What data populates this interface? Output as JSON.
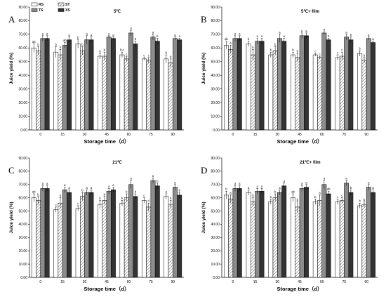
{
  "legend": [
    "RS",
    "ST",
    "TS",
    "XS"
  ],
  "colors": {
    "RS": "#ffffff",
    "ST": "hatch",
    "TS": "#8c8c8c",
    "XS": "#333333",
    "axis": "#000000"
  },
  "chart_data": [
    {
      "type": "bar",
      "letter": "A",
      "title": "5℃",
      "xlabel": "Storage time（d）",
      "ylabel": "Juice yield (%)",
      "ylim": [
        0,
        90
      ],
      "yticks": [
        "0.00",
        "10.00",
        "20.00",
        "30.00",
        "40.00",
        "50.00",
        "60.00",
        "70.00",
        "80.00",
        "90.00"
      ],
      "categories": [
        "0",
        "15",
        "30",
        "45",
        "60",
        "75",
        "90"
      ],
      "series": [
        {
          "name": "RS",
          "values": [
            60,
            57,
            63,
            54,
            55,
            52,
            52
          ],
          "err": [
            3,
            4,
            3,
            2,
            2,
            1,
            3
          ]
        },
        {
          "name": "ST",
          "values": [
            58,
            55,
            58,
            54,
            52,
            51,
            49
          ],
          "err": [
            3,
            4,
            3,
            3,
            2,
            2,
            3
          ]
        },
        {
          "name": "TS",
          "values": [
            67,
            62,
            66,
            68,
            71,
            68,
            67
          ],
          "err": [
            2,
            2,
            3,
            1,
            2,
            2,
            1
          ]
        },
        {
          "name": "XS",
          "values": [
            67,
            66,
            66,
            67,
            63,
            65,
            66
          ],
          "err": [
            2,
            2,
            2,
            1,
            2,
            2,
            1
          ]
        }
      ],
      "labels": [
        [
          "ab",
          "b",
          "a",
          "a"
        ],
        [
          "b",
          "b",
          "ab",
          "a"
        ],
        [
          "b",
          "b",
          "a",
          "a"
        ],
        [
          "b",
          "b",
          "a",
          "a"
        ],
        [
          "b,c",
          "c",
          "a",
          "b"
        ],
        [
          "c",
          "c",
          "a",
          "b"
        ],
        [
          "b",
          "b",
          "a",
          "a"
        ]
      ]
    },
    {
      "type": "bar",
      "letter": "B",
      "title": "5℃+ film",
      "xlabel": "Storage time（d）",
      "ylabel": "Juice yield (%)",
      "ylim": [
        0,
        90
      ],
      "yticks": [
        "0.00",
        "10.00",
        "20.00",
        "30.00",
        "40.00",
        "50.00",
        "60.00",
        "70.00",
        "80.00",
        "90.00"
      ],
      "categories": [
        "0",
        "15",
        "30",
        "45",
        "60",
        "75",
        "90"
      ],
      "series": [
        {
          "name": "RS",
          "values": [
            62,
            63,
            55,
            55,
            55,
            53,
            56
          ],
          "err": [
            3,
            2,
            2,
            2,
            1,
            2,
            2
          ]
        },
        {
          "name": "ST",
          "values": [
            59,
            55,
            58,
            53,
            53,
            54,
            51
          ],
          "err": [
            3,
            4,
            3,
            3,
            1,
            3,
            2
          ]
        },
        {
          "name": "TS",
          "values": [
            67,
            65,
            67,
            69,
            71,
            68,
            67
          ],
          "err": [
            2,
            2,
            3,
            2,
            1,
            2,
            1
          ]
        },
        {
          "name": "XS",
          "values": [
            67,
            65,
            65,
            69,
            66,
            66,
            64
          ],
          "err": [
            2,
            2,
            2,
            2,
            1,
            2,
            1
          ]
        }
      ],
      "labels": [
        [
          "ab",
          "b",
          "a",
          "a"
        ],
        [
          "b",
          "b",
          "a",
          "a"
        ],
        [
          "b",
          "b",
          "a",
          "a"
        ],
        [
          "b",
          "b",
          "a",
          "a"
        ],
        [
          "c",
          "c",
          "a",
          "b"
        ],
        [
          "c",
          "c",
          "a",
          "b"
        ],
        [
          "b",
          "b",
          "a",
          "a"
        ]
      ]
    },
    {
      "type": "bar",
      "letter": "C",
      "title": "21℃",
      "xlabel": "Storage time（d）",
      "ylabel": "Juice yield (%)",
      "ylim": [
        0,
        90
      ],
      "yticks": [
        "0.00",
        "10.00",
        "20.00",
        "30.00",
        "40.00",
        "50.00",
        "60.00",
        "70.00",
        "80.00",
        "90.00"
      ],
      "categories": [
        "0",
        "15",
        "30",
        "45",
        "60",
        "75",
        "90"
      ],
      "series": [
        {
          "name": "RS",
          "values": [
            60,
            51,
            52,
            55,
            56,
            58,
            61
          ],
          "err": [
            3,
            2,
            2,
            3,
            2,
            2,
            2
          ]
        },
        {
          "name": "ST",
          "values": [
            58,
            56,
            61,
            58,
            60,
            53,
            55
          ],
          "err": [
            3,
            4,
            3,
            3,
            3,
            3,
            3
          ]
        },
        {
          "name": "TS",
          "values": [
            67,
            66,
            64,
            65,
            70,
            73,
            68
          ],
          "err": [
            2,
            2,
            2,
            2,
            3,
            2,
            2
          ]
        },
        {
          "name": "XS",
          "values": [
            67,
            64,
            64,
            66,
            61,
            69,
            62
          ],
          "err": [
            2,
            2,
            2,
            2,
            2,
            2,
            2
          ]
        }
      ],
      "labels": [
        [
          "ab",
          "b",
          "a",
          "a"
        ],
        [
          "c",
          "b",
          "a",
          "a"
        ],
        [
          "c",
          "b",
          "a",
          "a"
        ],
        [
          "b",
          "b",
          "a",
          "a"
        ],
        [
          "b",
          "b",
          "a",
          "b"
        ],
        [
          "c",
          "d",
          "a",
          "b"
        ],
        [
          "a",
          "b",
          "a",
          "b"
        ]
      ]
    },
    {
      "type": "bar",
      "letter": "D",
      "title": "21℃+ film",
      "xlabel": "Storage time（d）",
      "ylabel": "Juice yield (%)",
      "ylim": [
        0,
        90
      ],
      "yticks": [
        "0.00",
        "10.00",
        "20.00",
        "30.00",
        "40.00",
        "50.00",
        "60.00",
        "70.00",
        "80.00",
        "90.00"
      ],
      "categories": [
        "0",
        "15",
        "30",
        "45",
        "60",
        "75",
        "90"
      ],
      "series": [
        {
          "name": "RS",
          "values": [
            62,
            64,
            57,
            60,
            57,
            57,
            54
          ],
          "err": [
            3,
            2,
            2,
            3,
            2,
            2,
            2
          ]
        },
        {
          "name": "ST",
          "values": [
            59,
            57,
            60,
            53,
            58,
            58,
            55
          ],
          "err": [
            3,
            3,
            3,
            4,
            4,
            2,
            2
          ]
        },
        {
          "name": "TS",
          "values": [
            67,
            65,
            64,
            67,
            70,
            71,
            68
          ],
          "err": [
            2,
            2,
            2,
            2,
            3,
            2,
            2
          ]
        },
        {
          "name": "XS",
          "values": [
            67,
            65,
            69,
            68,
            63,
            64,
            64
          ],
          "err": [
            2,
            2,
            2,
            2,
            2,
            2,
            2
          ]
        }
      ],
      "labels": [
        [
          "b",
          "b",
          "a",
          "a"
        ],
        [
          "a",
          "b",
          "a",
          "a"
        ],
        [
          "b",
          "b",
          "a",
          "a"
        ],
        [
          "ab",
          "b",
          "a",
          "a"
        ],
        [
          "b",
          "b",
          "a",
          "ab"
        ],
        [
          "c",
          "c",
          "a",
          "b"
        ],
        [
          "b",
          "b",
          "a",
          "a"
        ]
      ]
    }
  ]
}
